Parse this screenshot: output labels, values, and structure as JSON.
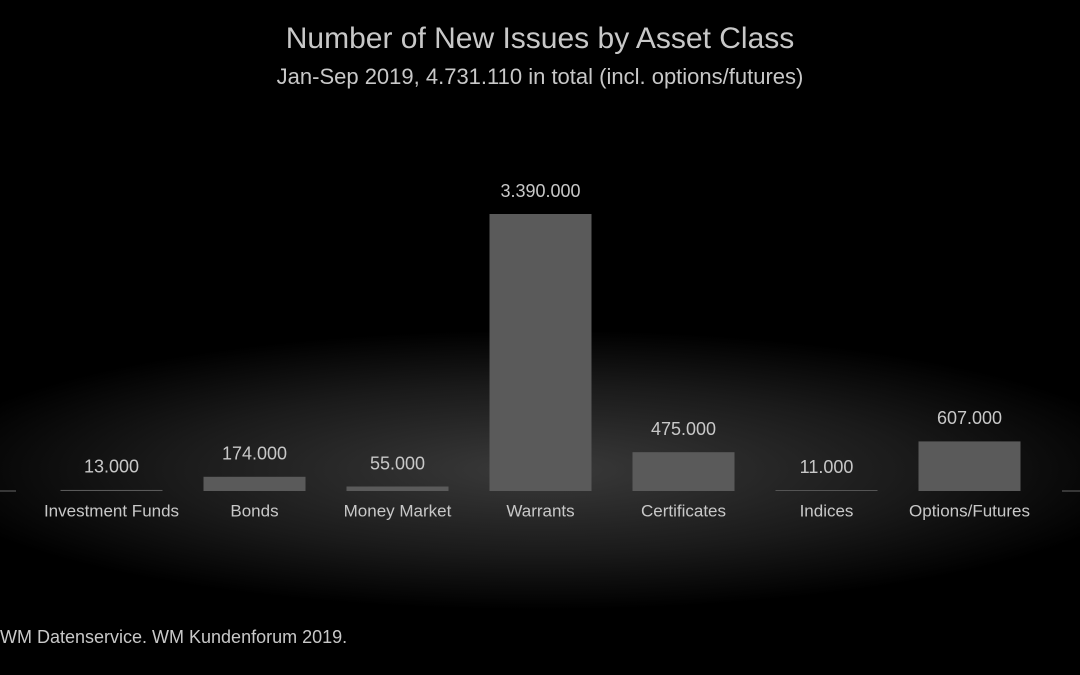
{
  "chart_data": {
    "type": "bar",
    "title": "Number of New Issues by Asset Class",
    "subtitle": "Jan-Sep 2019, 4.731.110 in total (incl. options/futures)",
    "categories": [
      "Investment Funds",
      "Bonds",
      "Money Market",
      "Warrants",
      "Certificates",
      "Indices",
      "Options/Futures"
    ],
    "values": [
      13000,
      174000,
      55000,
      3390000,
      475000,
      11000,
      607000
    ],
    "value_labels": [
      "13.000",
      "174.000",
      "55.000",
      "3.390.000",
      "475.000",
      "11.000",
      "607.000"
    ],
    "color": "#5a5a5a",
    "source": "WM Datenservice. WM Kundenforum 2019."
  }
}
